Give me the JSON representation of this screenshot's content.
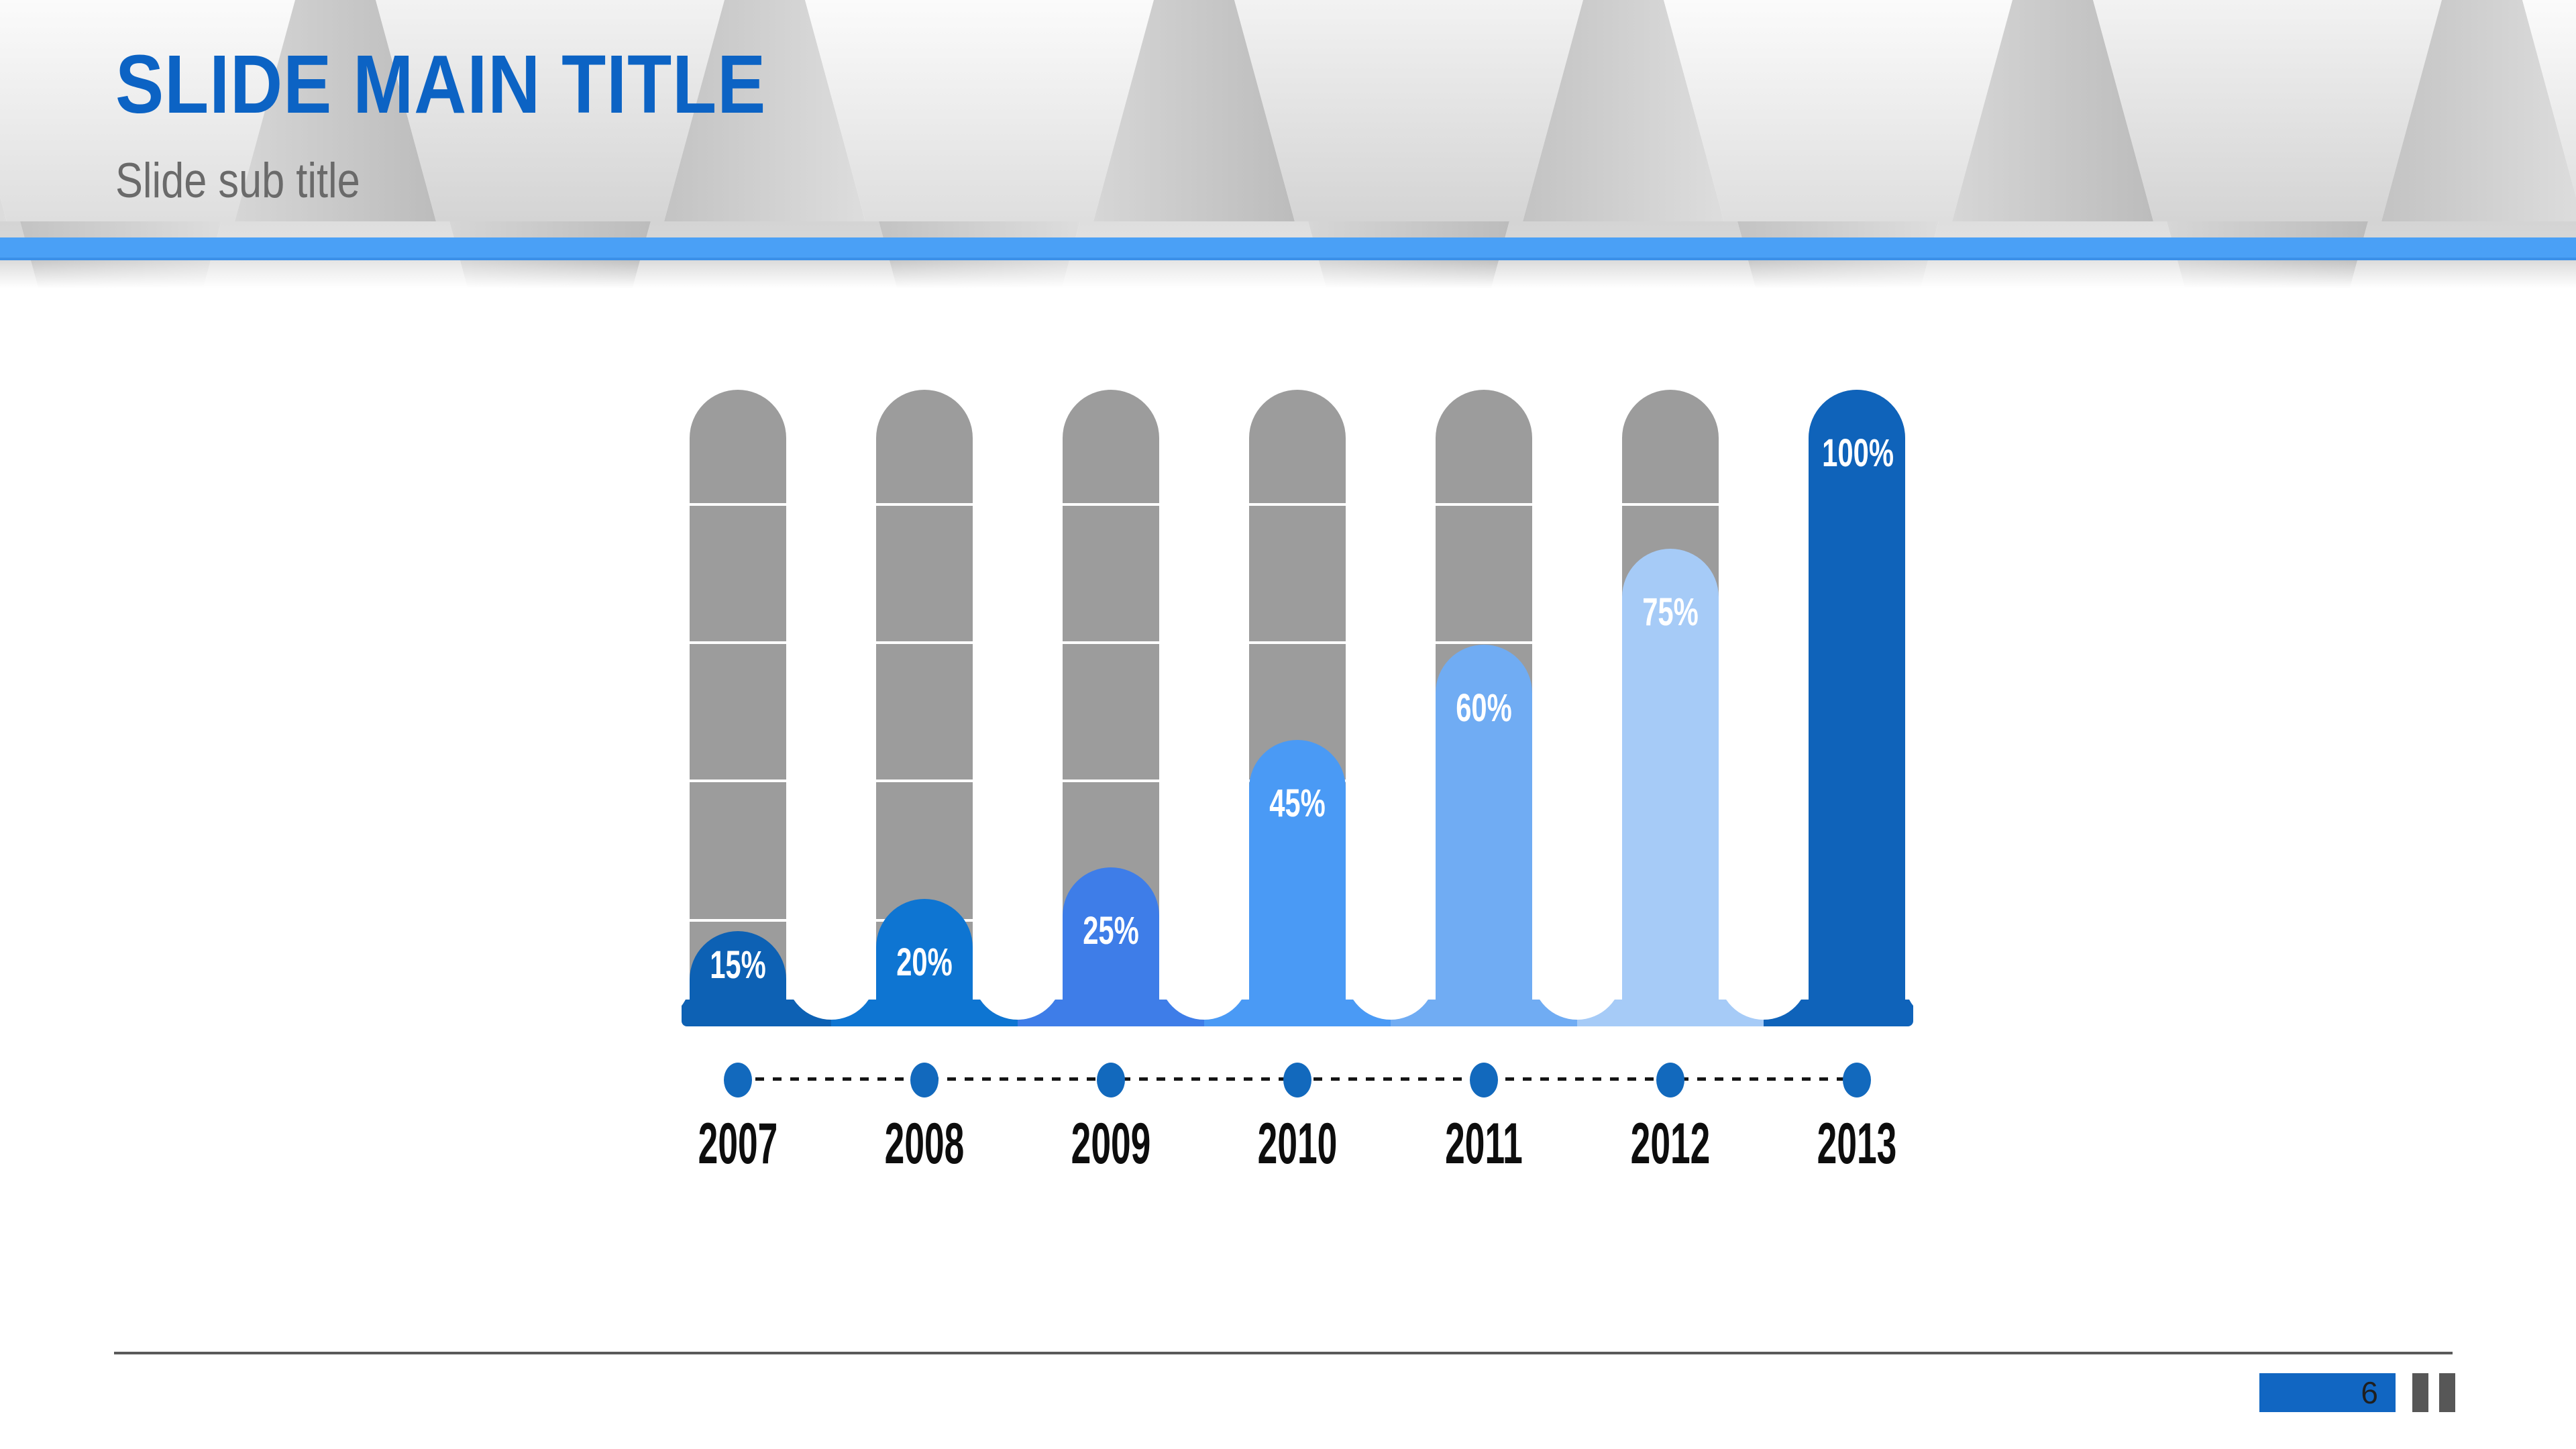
{
  "header": {
    "title": "SLIDE MAIN TITLE",
    "subtitle": "Slide sub title"
  },
  "chart_data": {
    "type": "bar",
    "title": "",
    "xlabel": "",
    "ylabel": "",
    "categories": [
      "2007",
      "2008",
      "2009",
      "2010",
      "2011",
      "2012",
      "2013"
    ],
    "values": [
      15,
      20,
      25,
      45,
      60,
      75,
      100
    ],
    "value_labels": [
      "15%",
      "20%",
      "25%",
      "45%",
      "60%",
      "75%",
      "100%"
    ],
    "ylim": [
      0,
      100
    ],
    "grid": "white segment dividers on gray tracks",
    "legend_position": "none",
    "bar_colors": [
      "#0d61b4",
      "#0e75d2",
      "#3e7de8",
      "#4a9af5",
      "#70acf3",
      "#a6cbf7",
      "#0f63ba"
    ],
    "track_color": "#9c9c9c"
  },
  "timeline": {
    "dot_color": "#1269bd",
    "line_color": "#151515",
    "line_style": "dashed"
  },
  "footer": {
    "page_number": "6",
    "page_box_color": "#1166c2"
  },
  "colors": {
    "accent_band": "#4aa0f6",
    "title_text": "#0c63c4",
    "subtitle_text": "#6a6a6a"
  }
}
